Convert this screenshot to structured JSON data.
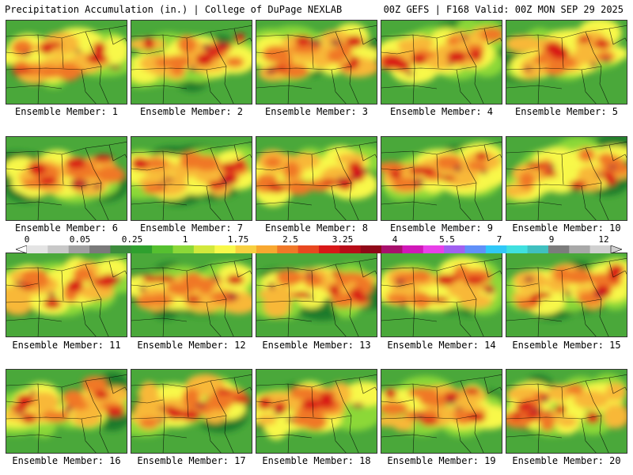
{
  "header": {
    "title_left": "Precipitation Accumulation (in.) | College of DuPage NEXLAB",
    "title_right": "00Z GEFS | F168 Valid: 00Z MON SEP 29 2025"
  },
  "colorbar": {
    "tick_labels": [
      "0",
      "0.05",
      "0.25",
      "1",
      "1.75",
      "2.5",
      "3.25",
      "4",
      "5.5",
      "7",
      "9",
      "12"
    ],
    "colors": [
      "#e4e4e4",
      "#c8c8c8",
      "#a0a0a0",
      "#7a7a7a",
      "#3c8c3c",
      "#2ea02e",
      "#55c030",
      "#8cd838",
      "#d2e83c",
      "#f8f84a",
      "#f8d040",
      "#f8a830",
      "#f07828",
      "#e84820",
      "#d81818",
      "#b80c18",
      "#900818",
      "#a8106c",
      "#d018b8",
      "#e840e8",
      "#a060f0",
      "#6090f8",
      "#30c8f8",
      "#40e0e0",
      "#40c0c0",
      "#7c7c7c",
      "#a8a8a8",
      "#d0d0d0"
    ]
  },
  "members": [
    {
      "label": "Ensemble Member: 1"
    },
    {
      "label": "Ensemble Member: 2"
    },
    {
      "label": "Ensemble Member: 3"
    },
    {
      "label": "Ensemble Member: 4"
    },
    {
      "label": "Ensemble Member: 5"
    },
    {
      "label": "Ensemble Member: 6"
    },
    {
      "label": "Ensemble Member: 7"
    },
    {
      "label": "Ensemble Member: 8"
    },
    {
      "label": "Ensemble Member: 9"
    },
    {
      "label": "Ensemble Member: 10"
    },
    {
      "label": "Ensemble Member: 11"
    },
    {
      "label": "Ensemble Member: 12"
    },
    {
      "label": "Ensemble Member: 13"
    },
    {
      "label": "Ensemble Member: 14"
    },
    {
      "label": "Ensemble Member: 15"
    },
    {
      "label": "Ensemble Member: 16"
    },
    {
      "label": "Ensemble Member: 17"
    },
    {
      "label": "Ensemble Member: 18"
    },
    {
      "label": "Ensemble Member: 19"
    },
    {
      "label": "Ensemble Member: 20"
    }
  ]
}
